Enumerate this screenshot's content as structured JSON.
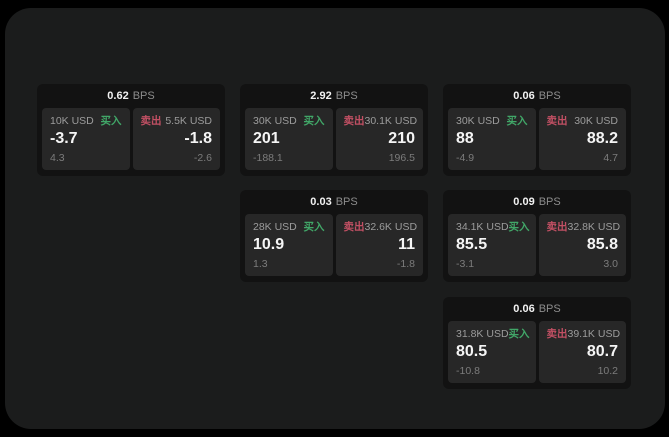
{
  "colors": {
    "page_background": "#000000",
    "surface_background": "#1b1c1c",
    "card_background": "#121212",
    "panel_background": "#272727",
    "buy_green": "#41a768",
    "sell_red": "#c25064",
    "value_white": "#f5f5f5",
    "label_gray": "#9c9c9c"
  },
  "cards": [
    {
      "bps": "0.62",
      "bps_unit": "BPS",
      "buy": {
        "amount": "10K USD",
        "side_label": "买入",
        "value": "-3.7",
        "sub": "4.3"
      },
      "sell": {
        "amount": "5.5K USD",
        "side_label": "卖出",
        "value": "-1.8",
        "sub": "-2.6"
      }
    },
    {
      "bps": "2.92",
      "bps_unit": "BPS",
      "buy": {
        "amount": "30K USD",
        "side_label": "买入",
        "value": "201",
        "sub": "-188.1"
      },
      "sell": {
        "amount": "30.1K USD",
        "side_label": "卖出",
        "value": "210",
        "sub": "196.5"
      }
    },
    {
      "bps": "0.06",
      "bps_unit": "BPS",
      "buy": {
        "amount": "30K USD",
        "side_label": "买入",
        "value": "88",
        "sub": "-4.9"
      },
      "sell": {
        "amount": "30K USD",
        "side_label": "卖出",
        "value": "88.2",
        "sub": "4.7"
      }
    },
    {
      "bps": "0.03",
      "bps_unit": "BPS",
      "buy": {
        "amount": "28K USD",
        "side_label": "买入",
        "value": "10.9",
        "sub": "1.3"
      },
      "sell": {
        "amount": "32.6K USD",
        "side_label": "卖出",
        "value": "11",
        "sub": "-1.8"
      }
    },
    {
      "bps": "0.09",
      "bps_unit": "BPS",
      "buy": {
        "amount": "34.1K USD",
        "side_label": "买入",
        "value": "85.5",
        "sub": "-3.1"
      },
      "sell": {
        "amount": "32.8K USD",
        "side_label": "卖出",
        "value": "85.8",
        "sub": "3.0"
      }
    },
    {
      "bps": "0.06",
      "bps_unit": "BPS",
      "buy": {
        "amount": "31.8K USD",
        "side_label": "买入",
        "value": "80.5",
        "sub": "-10.8"
      },
      "sell": {
        "amount": "39.1K USD",
        "side_label": "卖出",
        "value": "80.7",
        "sub": "10.2"
      }
    }
  ]
}
